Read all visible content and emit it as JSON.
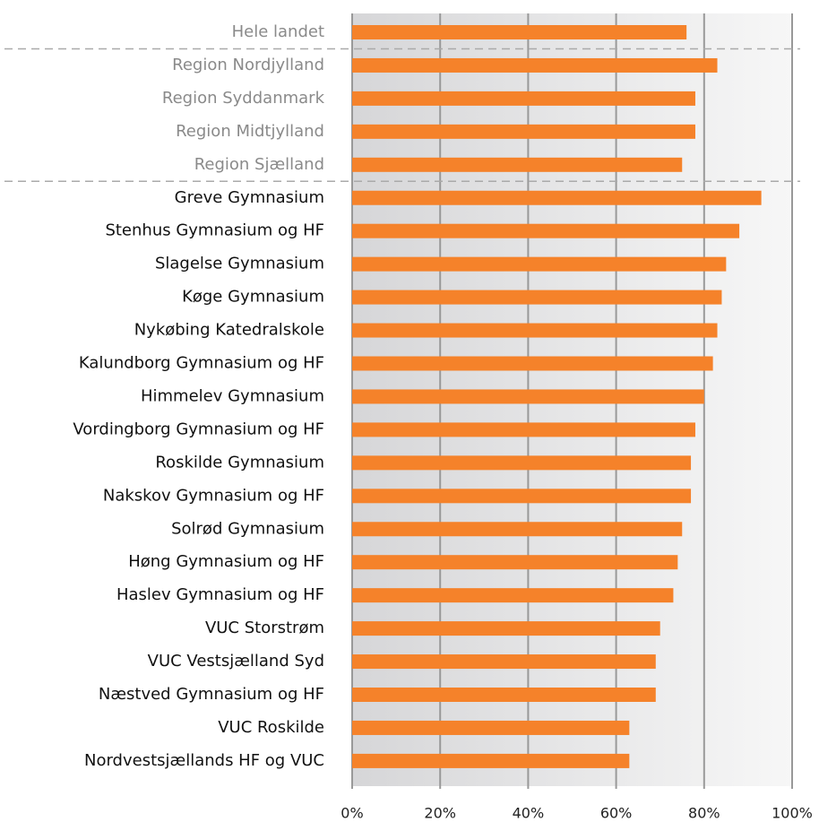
{
  "chart_data": {
    "type": "barh",
    "categories": [
      "Hele landet",
      "Region Nordjylland",
      "Region Syddanmark",
      "Region Midtjylland",
      "Region Sjælland",
      "Greve Gymnasium",
      "Stenhus Gymnasium og HF",
      "Slagelse Gymnasium",
      "Køge Gymnasium",
      "Nykøbing Katedralskole",
      "Kalundborg Gymnasium og HF",
      "Himmelev Gymnasium",
      "Vordingborg Gymnasium og HF",
      "Roskilde Gymnasium",
      "Nakskov Gymnasium og HF",
      "Solrød Gymnasium",
      "Høng Gymnasium og HF",
      "Haslev Gymnasium og HF",
      "VUC Storstrøm",
      "VUC Vestsjælland Syd",
      "Næstved Gymnasium og HF",
      "VUC Roskilde",
      "Nordvestsjællands HF og VUC"
    ],
    "values": [
      76,
      83,
      78,
      78,
      75,
      93,
      88,
      85,
      84,
      83,
      82,
      80,
      78,
      77,
      77,
      75,
      74,
      73,
      70,
      69,
      69,
      63,
      63
    ],
    "color": "#f5822a",
    "xlim": [
      0,
      100
    ],
    "xticks": [
      {
        "value": 0,
        "label": "0%"
      },
      {
        "value": 20,
        "label": "20%"
      },
      {
        "value": 40,
        "label": "40%"
      },
      {
        "value": 60,
        "label": "60%"
      },
      {
        "value": 80,
        "label": "80%"
      },
      {
        "value": 100,
        "label": "100%"
      }
    ],
    "grid": true
  }
}
